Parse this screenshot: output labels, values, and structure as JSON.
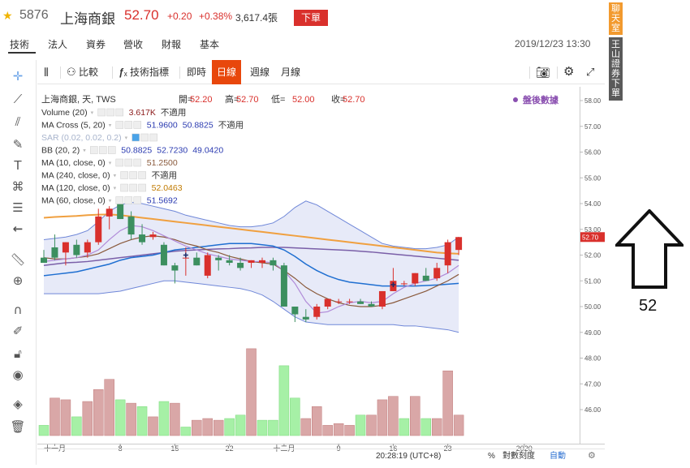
{
  "header": {
    "code": "5876",
    "name": "上海商銀",
    "price": "52.70",
    "change": "+0.20",
    "change_pct": "+0.38%",
    "volume": "3,617.4張",
    "order_button": "下單"
  },
  "tabs": [
    {
      "label": "技術"
    },
    {
      "label": "法人"
    },
    {
      "label": "資券"
    },
    {
      "label": "營收"
    },
    {
      "label": "財報"
    },
    {
      "label": "基本"
    }
  ],
  "datetime": "2019/12/23 13:30",
  "toolbar": {
    "compare": "比較",
    "indicators": "技術指標",
    "intraday": "即時",
    "daily": "日線",
    "weekly": "週線",
    "monthly": "月線"
  },
  "side": {
    "chat": "聊天室",
    "broker": "王山證券下單"
  },
  "annotation": {
    "label": "52"
  },
  "colors": {
    "up": "#d9302c",
    "down": "#3c8f5f",
    "ma10": "#8a5a3c",
    "ma60": "#1f6fd1",
    "ma120": "#f0a040",
    "ma240": "#7a5fa8",
    "bb": "#6f87d8",
    "bbfill": "#dfe3f6",
    "volup": "#d9a7a7",
    "voldown": "#a6f0a6"
  },
  "chart_data": {
    "type": "candlestick",
    "title": "上海商銀, 天, TWS",
    "ohlc_text": {
      "open_label": "開",
      "open": "52.20",
      "high_label": "高",
      "high": "52.70",
      "low_label": "低",
      "low": "52.00",
      "close_label": "收",
      "close": "52.70"
    },
    "after_hours": "盤後數據",
    "indicators": [
      {
        "name": "Volume (20)",
        "values": [
          "3.617K",
          "不適用"
        ]
      },
      {
        "name": "MA Cross (5, 20)",
        "values": [
          "51.9600",
          "50.8825",
          "不適用"
        ]
      },
      {
        "name": "SAR (0.02, 0.02, 0.2)",
        "values": []
      },
      {
        "name": "BB (20, 2)",
        "values": [
          "50.8825",
          "52.7230",
          "49.0420"
        ]
      },
      {
        "name": "MA (10, close, 0)",
        "values": [
          "51.2500"
        ]
      },
      {
        "name": "MA (240, close, 0)",
        "values": [
          "不適用"
        ]
      },
      {
        "name": "MA (120, close, 0)",
        "values": [
          "52.0463"
        ]
      },
      {
        "name": "MA (60, close, 0)",
        "values": [
          "51.5692"
        ]
      }
    ],
    "y_ticks": [
      "58.00",
      "57.00",
      "56.00",
      "55.00",
      "54.00",
      "53.00",
      "52.00",
      "51.00",
      "50.00",
      "49.00",
      "48.00",
      "47.00",
      "46.00"
    ],
    "price_tag": "52.70",
    "x_ticks": [
      {
        "label": "十一月",
        "i": 1
      },
      {
        "label": "8",
        "i": 7
      },
      {
        "label": "15",
        "i": 12
      },
      {
        "label": "22",
        "i": 17
      },
      {
        "label": "十二月",
        "i": 22
      },
      {
        "label": "9",
        "i": 27
      },
      {
        "label": "16",
        "i": 32
      },
      {
        "label": "23",
        "i": 37
      },
      {
        "label": "2020",
        "i": 44
      }
    ],
    "candles": [
      {
        "o": 51.9,
        "h": 52.2,
        "l": 51.7,
        "c": 51.7
      },
      {
        "o": 52.3,
        "h": 52.8,
        "l": 51.8,
        "c": 51.9
      },
      {
        "o": 52.1,
        "h": 52.5,
        "l": 51.6,
        "c": 52.5
      },
      {
        "o": 52.4,
        "h": 52.6,
        "l": 51.9,
        "c": 52.0
      },
      {
        "o": 52.1,
        "h": 52.6,
        "l": 51.9,
        "c": 52.5
      },
      {
        "o": 52.5,
        "h": 53.8,
        "l": 52.4,
        "c": 53.5
      },
      {
        "o": 53.5,
        "h": 53.9,
        "l": 53.0,
        "c": 53.8
      },
      {
        "o": 54.0,
        "h": 54.1,
        "l": 53.4,
        "c": 53.4
      },
      {
        "o": 53.5,
        "h": 53.7,
        "l": 52.6,
        "c": 52.8
      },
      {
        "o": 52.8,
        "h": 53.2,
        "l": 52.4,
        "c": 52.5
      },
      {
        "o": 52.7,
        "h": 52.9,
        "l": 52.6,
        "c": 52.8
      },
      {
        "o": 52.4,
        "h": 52.5,
        "l": 51.6,
        "c": 51.6
      },
      {
        "o": 51.6,
        "h": 51.7,
        "l": 50.9,
        "c": 51.4
      },
      {
        "o": 51.9,
        "h": 52.3,
        "l": 51.2,
        "c": 51.9
      },
      {
        "o": 51.9,
        "h": 52.1,
        "l": 51.6,
        "c": 51.6
      },
      {
        "o": 51.2,
        "h": 52.1,
        "l": 51.1,
        "c": 52.0
      },
      {
        "o": 51.9,
        "h": 52.0,
        "l": 51.4,
        "c": 51.8
      },
      {
        "o": 51.8,
        "h": 52.0,
        "l": 51.6,
        "c": 51.7
      },
      {
        "o": 51.7,
        "h": 51.9,
        "l": 51.4,
        "c": 51.5
      },
      {
        "o": 51.7,
        "h": 51.8,
        "l": 51.5,
        "c": 51.8
      },
      {
        "o": 51.7,
        "h": 51.9,
        "l": 51.5,
        "c": 51.8
      },
      {
        "o": 51.8,
        "h": 51.9,
        "l": 51.4,
        "c": 51.6
      },
      {
        "o": 51.6,
        "h": 51.7,
        "l": 50.0,
        "c": 50.0
      },
      {
        "o": 50.0,
        "h": 50.0,
        "l": 49.4,
        "c": 49.7
      },
      {
        "o": 49.6,
        "h": 49.9,
        "l": 49.4,
        "c": 49.5
      },
      {
        "o": 49.6,
        "h": 50.1,
        "l": 49.5,
        "c": 50.0
      },
      {
        "o": 50.0,
        "h": 50.3,
        "l": 49.9,
        "c": 50.3
      },
      {
        "o": 50.2,
        "h": 50.3,
        "l": 50.1,
        "c": 50.2
      },
      {
        "o": 50.2,
        "h": 50.3,
        "l": 50.1,
        "c": 50.2
      },
      {
        "o": 50.2,
        "h": 50.3,
        "l": 50.1,
        "c": 50.1
      },
      {
        "o": 50.1,
        "h": 50.2,
        "l": 50.0,
        "c": 50.0
      },
      {
        "o": 50.0,
        "h": 50.6,
        "l": 49.9,
        "c": 50.6
      },
      {
        "o": 50.6,
        "h": 51.5,
        "l": 50.6,
        "c": 51.0
      },
      {
        "o": 50.9,
        "h": 51.0,
        "l": 50.8,
        "c": 50.9
      },
      {
        "o": 50.9,
        "h": 51.3,
        "l": 50.8,
        "c": 51.3
      },
      {
        "o": 51.2,
        "h": 51.5,
        "l": 51.0,
        "c": 51.0
      },
      {
        "o": 51.1,
        "h": 51.7,
        "l": 51.0,
        "c": 51.5
      },
      {
        "o": 51.6,
        "h": 52.6,
        "l": 51.3,
        "c": 52.5
      },
      {
        "o": 52.2,
        "h": 52.7,
        "l": 52.0,
        "c": 52.7
      }
    ],
    "volume": [
      {
        "v": 0.3,
        "up": false
      },
      {
        "v": 1.1,
        "up": true
      },
      {
        "v": 1.05,
        "up": true
      },
      {
        "v": 0.55,
        "up": false
      },
      {
        "v": 1.0,
        "up": true
      },
      {
        "v": 1.35,
        "up": true
      },
      {
        "v": 1.65,
        "up": true
      },
      {
        "v": 1.05,
        "up": false
      },
      {
        "v": 0.95,
        "up": true
      },
      {
        "v": 0.85,
        "up": false
      },
      {
        "v": 0.55,
        "up": true
      },
      {
        "v": 1.0,
        "up": false
      },
      {
        "v": 0.95,
        "up": true
      },
      {
        "v": 0.25,
        "up": false
      },
      {
        "v": 0.45,
        "up": true
      },
      {
        "v": 0.5,
        "up": true
      },
      {
        "v": 0.45,
        "up": true
      },
      {
        "v": 0.5,
        "up": false
      },
      {
        "v": 0.6,
        "up": false
      },
      {
        "v": 2.55,
        "up": true
      },
      {
        "v": 0.45,
        "up": false
      },
      {
        "v": 0.45,
        "up": false
      },
      {
        "v": 2.05,
        "up": false
      },
      {
        "v": 1.1,
        "up": false
      },
      {
        "v": 0.5,
        "up": true
      },
      {
        "v": 0.85,
        "up": true
      },
      {
        "v": 0.3,
        "up": true
      },
      {
        "v": 0.35,
        "up": true
      },
      {
        "v": 0.3,
        "up": true
      },
      {
        "v": 0.6,
        "up": false
      },
      {
        "v": 0.6,
        "up": true
      },
      {
        "v": 1.05,
        "up": true
      },
      {
        "v": 1.15,
        "up": true
      },
      {
        "v": 0.5,
        "up": false
      },
      {
        "v": 1.15,
        "up": true
      },
      {
        "v": 0.5,
        "up": false
      },
      {
        "v": 0.5,
        "up": true
      },
      {
        "v": 1.9,
        "up": true
      },
      {
        "v": 0.6,
        "up": true
      }
    ],
    "ma10": [
      51.9,
      51.85,
      51.85,
      51.9,
      51.95,
      52.05,
      52.25,
      52.45,
      52.6,
      52.7,
      52.75,
      52.7,
      52.6,
      52.45,
      52.35,
      52.2,
      52.1,
      51.95,
      51.85,
      51.75,
      51.7,
      51.65,
      51.4,
      51.1,
      50.75,
      50.5,
      50.3,
      50.15,
      50.05,
      50.0,
      50.0,
      50.05,
      50.15,
      50.3,
      50.45,
      50.6,
      50.8,
      51.0,
      51.25
    ],
    "ma60": [
      51.2,
      51.25,
      51.3,
      51.35,
      51.45,
      51.55,
      51.65,
      51.8,
      51.9,
      51.95,
      52.0,
      52.1,
      52.2,
      52.25,
      52.3,
      52.35,
      52.4,
      52.45,
      52.45,
      52.45,
      52.4,
      52.35,
      52.2,
      51.95,
      51.65,
      51.4,
      51.2,
      51.05,
      50.95,
      50.9,
      50.85,
      50.8,
      50.8,
      50.8,
      50.8,
      50.82,
      50.84,
      50.87,
      50.9
    ],
    "ma120": [
      53.45,
      53.48,
      53.5,
      53.52,
      53.55,
      53.57,
      53.58,
      53.55,
      53.5,
      53.45,
      53.4,
      53.35,
      53.3,
      53.25,
      53.2,
      53.15,
      53.1,
      53.05,
      53.0,
      52.95,
      52.9,
      52.85,
      52.8,
      52.75,
      52.7,
      52.65,
      52.6,
      52.55,
      52.5,
      52.45,
      52.4,
      52.35,
      52.3,
      52.25,
      52.2,
      52.15,
      52.1,
      52.07,
      52.05
    ],
    "ma240": [
      51.6,
      51.65,
      51.7,
      51.72,
      51.75,
      51.8,
      51.85,
      51.9,
      51.95,
      52.0,
      52.05,
      52.1,
      52.15,
      52.18,
      52.2,
      52.22,
      52.24,
      52.25,
      52.27,
      52.28,
      52.3,
      52.3,
      52.3,
      52.28,
      52.26,
      52.24,
      52.22,
      52.2,
      52.18,
      52.15,
      52.12,
      52.08,
      52.04,
      52.0,
      51.96,
      51.92,
      51.88,
      51.84,
      51.8
    ],
    "ma10b": [
      51.75,
      51.8,
      51.85,
      51.9,
      52.0,
      52.2,
      52.6,
      52.95,
      53.15,
      53.1,
      52.95,
      52.75,
      52.55,
      52.35,
      52.2,
      52.05,
      51.95,
      51.85,
      51.8,
      51.75,
      51.75,
      51.7,
      51.4,
      50.9,
      50.2,
      49.75,
      49.8,
      50.0,
      50.15,
      50.2,
      50.15,
      50.2,
      50.5,
      50.75,
      50.9,
      51.0,
      51.1,
      51.3,
      51.6
    ],
    "bb_upper": [
      52.6,
      52.65,
      52.7,
      52.8,
      52.95,
      53.3,
      53.7,
      53.95,
      54.05,
      54.0,
      53.9,
      53.8,
      53.7,
      53.55,
      53.45,
      53.35,
      53.25,
      53.15,
      53.1,
      53.1,
      53.15,
      53.25,
      53.5,
      53.85,
      54.1,
      53.95,
      53.7,
      53.45,
      53.2,
      52.95,
      52.7,
      52.45,
      52.35,
      52.3,
      52.25,
      52.25,
      52.3,
      52.4,
      52.7
    ],
    "bb_lower": [
      50.5,
      50.5,
      50.5,
      50.5,
      50.5,
      50.5,
      50.55,
      50.6,
      50.7,
      50.8,
      50.9,
      51.0,
      51.0,
      50.95,
      50.9,
      50.85,
      50.8,
      50.75,
      50.7,
      50.6,
      50.45,
      50.2,
      49.9,
      49.6,
      49.4,
      49.35,
      49.3,
      49.3,
      49.3,
      49.3,
      49.3,
      49.3,
      49.3,
      49.25,
      49.25,
      49.2,
      49.15,
      49.1,
      49.0
    ],
    "x_markers": [
      {
        "i": 13,
        "p": 52.0
      },
      {
        "i": 32,
        "p": 50.85
      }
    ]
  },
  "statusbar": {
    "time": "20:28:19 (UTC+8)",
    "pct": "%",
    "log": "對數刻度",
    "auto": "自動"
  }
}
